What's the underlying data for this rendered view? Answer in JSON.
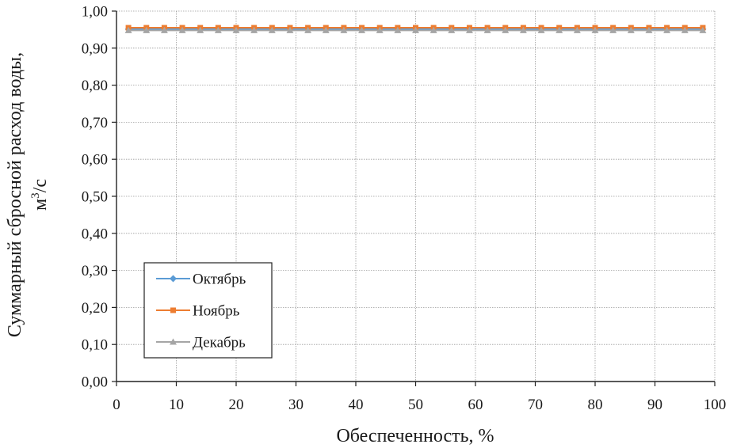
{
  "chart_data": {
    "type": "line",
    "xlabel": "Обеспеченность, %",
    "ylabel_line1": "Суммарный сбросной расход воды,",
    "ylabel_line2_base": "м",
    "ylabel_line2_sup": "3",
    "ylabel_line2_tail": "/с",
    "xlim": [
      0,
      100
    ],
    "ylim": [
      0,
      1.0
    ],
    "x_ticks": [
      "0",
      "10",
      "20",
      "30",
      "40",
      "50",
      "60",
      "70",
      "80",
      "90",
      "100"
    ],
    "y_ticks": [
      "0,00",
      "0,10",
      "0,20",
      "0,30",
      "0,40",
      "0,50",
      "0,60",
      "0,70",
      "0,80",
      "0,90",
      "1,00"
    ],
    "grid": true,
    "legend_position": "lower-left",
    "x": [
      2,
      5,
      8,
      11,
      14,
      17,
      20,
      23,
      26,
      29,
      32,
      35,
      38,
      41,
      44,
      47,
      50,
      53,
      56,
      59,
      62,
      65,
      68,
      71,
      74,
      77,
      80,
      83,
      86,
      89,
      92,
      95,
      98
    ],
    "series": [
      {
        "name": "Октябрь",
        "color": "#5b9bd5",
        "marker": "diamond",
        "values": [
          0.951,
          0.951,
          0.951,
          0.951,
          0.951,
          0.951,
          0.951,
          0.951,
          0.951,
          0.951,
          0.951,
          0.951,
          0.951,
          0.951,
          0.951,
          0.951,
          0.951,
          0.951,
          0.951,
          0.951,
          0.951,
          0.951,
          0.951,
          0.951,
          0.951,
          0.951,
          0.951,
          0.951,
          0.951,
          0.951,
          0.951,
          0.951,
          0.951
        ]
      },
      {
        "name": "Ноябрь",
        "color": "#ed7d31",
        "marker": "square",
        "values": [
          0.955,
          0.955,
          0.955,
          0.955,
          0.955,
          0.955,
          0.955,
          0.955,
          0.955,
          0.955,
          0.955,
          0.955,
          0.955,
          0.955,
          0.955,
          0.955,
          0.955,
          0.955,
          0.955,
          0.955,
          0.955,
          0.955,
          0.955,
          0.955,
          0.955,
          0.955,
          0.955,
          0.955,
          0.955,
          0.955,
          0.955,
          0.955,
          0.955
        ]
      },
      {
        "name": "Декабрь",
        "color": "#a5a5a5",
        "marker": "triangle",
        "values": [
          0.948,
          0.948,
          0.948,
          0.948,
          0.948,
          0.948,
          0.948,
          0.948,
          0.948,
          0.948,
          0.948,
          0.948,
          0.948,
          0.948,
          0.948,
          0.948,
          0.948,
          0.948,
          0.948,
          0.948,
          0.948,
          0.948,
          0.948,
          0.948,
          0.948,
          0.948,
          0.948,
          0.948,
          0.948,
          0.948,
          0.948,
          0.948,
          0.948
        ]
      }
    ]
  }
}
